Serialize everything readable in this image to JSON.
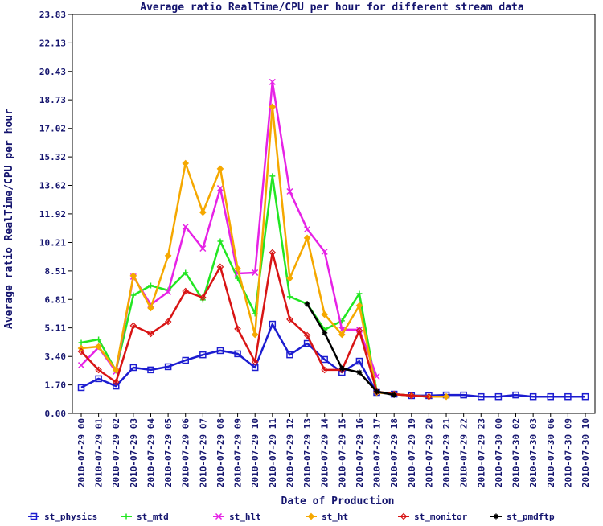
{
  "chart_data": {
    "type": "line",
    "title": "Average ratio RealTime/CPU per hour for different stream data",
    "x_label": "Date of Production",
    "y_label": "Average ratio RealTime/CPU per hour",
    "categories": [
      "2010-07-29 00",
      "2010-07-29 01",
      "2010-07-29 02",
      "2010-07-29 03",
      "2010-07-29 04",
      "2010-07-29 05",
      "2010-07-29 06",
      "2010-07-29 07",
      "2010-07-29 08",
      "2010-07-29 09",
      "2010-07-29 10",
      "2010-07-29 11",
      "2010-07-29 12",
      "2010-07-29 13",
      "2010-07-29 14",
      "2010-07-29 15",
      "2010-07-29 16",
      "2010-07-29 17",
      "2010-07-29 18",
      "2010-07-29 19",
      "2010-07-29 20",
      "2010-07-29 21",
      "2010-07-29 22",
      "2010-07-29 23",
      "2010-07-30 00",
      "2010-07-30 02",
      "2010-07-30 03",
      "2010-07-30 06",
      "2010-07-30 09",
      "2010-07-30 10"
    ],
    "ylim": [
      0,
      23.83
    ],
    "yticks": [
      {
        "value": 0,
        "label": "0.00"
      },
      {
        "value": 1.7,
        "label": "1.70"
      },
      {
        "value": 3.4,
        "label": "3.40"
      },
      5.11,
      6.81,
      8.51,
      10.21,
      11.92,
      13.62,
      15.32,
      17.02,
      18.73,
      20.43,
      22.13,
      23.83
    ],
    "grid": false,
    "legend": "bottom",
    "series": [
      {
        "name": "st_physics",
        "color": "#1c1cd0",
        "marker": "square",
        "values": [
          1.54,
          2.07,
          1.63,
          2.74,
          2.6,
          2.79,
          3.17,
          3.5,
          3.75,
          3.56,
          2.74,
          5.33,
          3.5,
          4.18,
          3.22,
          2.45,
          3.12,
          1.25,
          1.15,
          1.06,
          1.06,
          1.1,
          1.1,
          1.0,
          1.0,
          1.1,
          1.0,
          1.0,
          1.0,
          1.0
        ]
      },
      {
        "name": "st_mtd",
        "color": "#22e622",
        "marker": "plus",
        "values": [
          4.23,
          4.42,
          2.55,
          7.06,
          7.64,
          7.35,
          8.41,
          6.78,
          10.28,
          8.07,
          5.96,
          14.18,
          6.97,
          6.54,
          5.0,
          5.53,
          7.16,
          1.3,
          1.15,
          1.06,
          1.0,
          null,
          null,
          null,
          null,
          null,
          null,
          null,
          null,
          null
        ]
      },
      {
        "name": "st_hlt",
        "color": "#e622e6",
        "marker": "cross",
        "values": [
          2.88,
          3.94,
          2.5,
          8.17,
          6.49,
          7.26,
          11.15,
          9.85,
          13.45,
          8.36,
          8.41,
          19.8,
          13.26,
          11.0,
          9.66,
          5.0,
          5.0,
          2.21,
          null,
          null,
          null,
          null,
          null,
          null,
          null,
          null,
          null,
          null,
          null,
          null
        ]
      },
      {
        "name": "st_ht",
        "color": "#f5a800",
        "marker": "diamond",
        "values": [
          3.89,
          3.99,
          2.6,
          8.22,
          6.3,
          9.42,
          14.94,
          12.01,
          14.61,
          8.65,
          4.71,
          18.31,
          8.07,
          10.48,
          5.91,
          4.71,
          6.44,
          1.25,
          1.15,
          1.06,
          1.0,
          1.0,
          null,
          null,
          null,
          null,
          null,
          null,
          null,
          null
        ]
      },
      {
        "name": "st_monitor",
        "color": "#d81414",
        "marker": "diamond-open",
        "values": [
          3.7,
          2.6,
          1.87,
          5.24,
          4.76,
          5.48,
          7.3,
          6.92,
          8.75,
          5.05,
          3.08,
          9.61,
          5.62,
          4.66,
          2.6,
          2.6,
          4.95,
          1.3,
          1.15,
          1.06,
          1.0,
          null,
          null,
          null,
          null,
          null,
          null,
          null,
          null,
          null
        ]
      },
      {
        "name": "st_pmdftp",
        "color": "#000000",
        "marker": "star",
        "values": [
          null,
          null,
          null,
          null,
          null,
          null,
          null,
          null,
          null,
          null,
          null,
          null,
          null,
          6.54,
          4.81,
          2.69,
          2.45,
          1.3,
          1.1,
          null,
          null,
          null,
          null,
          null,
          null,
          null,
          null,
          null,
          null,
          null
        ]
      }
    ]
  }
}
